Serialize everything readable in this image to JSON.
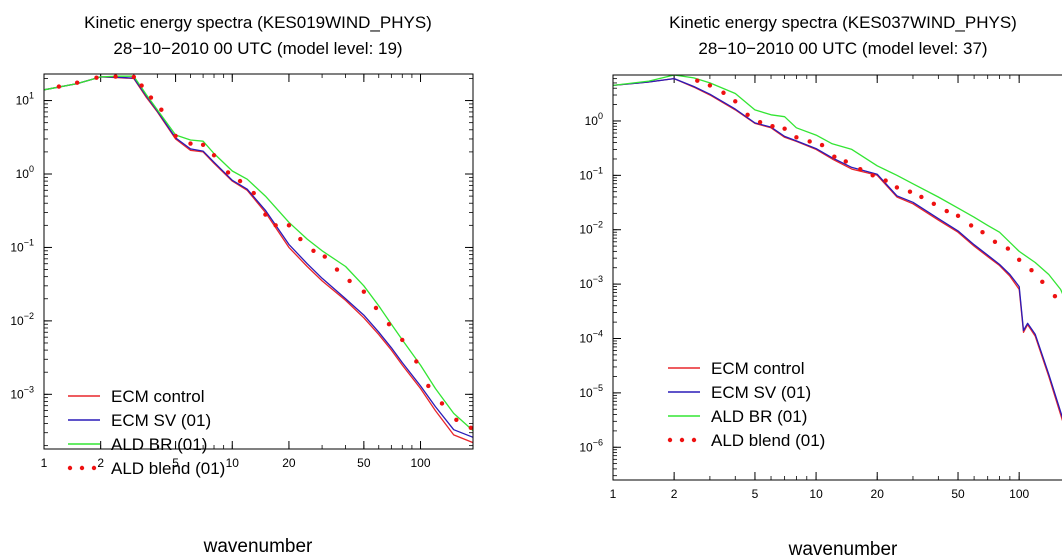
{
  "colors": {
    "ecm_control": "#e8262b",
    "ecm_sv": "#2a1bb8",
    "ald_br": "#33e533",
    "ald_blend": "#ee1111"
  },
  "chart_data": [
    {
      "type": "line",
      "title": "Kinetic energy spectra (KES019WIND_PHYS)",
      "subtitle": "28−10−2010 00 UTC (model level: 19)",
      "xlabel": "wavenumber",
      "ylabel": "",
      "x_scale": "log",
      "y_scale": "log",
      "xlim": [
        1,
        190
      ],
      "ylim": [
        0.00018,
        23
      ],
      "x_ticks": [
        1,
        2,
        5,
        10,
        20,
        50,
        100
      ],
      "x_tick_labels": [
        "1",
        "2",
        "5",
        "10",
        "20",
        "50",
        "100"
      ],
      "y_ticks": [
        0.001,
        0.01,
        0.1,
        1,
        10
      ],
      "y_tick_labels": [
        [
          "10",
          "−3"
        ],
        [
          "10",
          "−2"
        ],
        [
          "10",
          "−1"
        ],
        [
          "10",
          "0"
        ],
        [
          "10",
          "1"
        ]
      ],
      "legend_position": "bottom-left",
      "series": [
        {
          "name": "ECM control",
          "key": "ecm_control",
          "style": "line",
          "x": [
            1,
            1.5,
            2,
            2.5,
            3,
            3.5,
            4,
            5,
            6,
            7,
            8,
            10,
            12,
            15,
            20,
            25,
            30,
            40,
            50,
            60,
            70,
            80,
            100,
            120,
            150,
            190
          ],
          "y": [
            14,
            17,
            21,
            20.5,
            20,
            11,
            7,
            3,
            2.1,
            2.0,
            1.4,
            0.8,
            0.6,
            0.3,
            0.1,
            0.055,
            0.035,
            0.019,
            0.011,
            0.0065,
            0.004,
            0.0025,
            0.0012,
            0.0006,
            0.00028,
            0.00022
          ]
        },
        {
          "name": "ECM SV (01)",
          "key": "ecm_sv",
          "style": "line",
          "x": [
            1,
            1.5,
            2,
            2.5,
            3,
            3.5,
            4,
            5,
            6,
            7,
            8,
            10,
            12,
            15,
            20,
            25,
            30,
            40,
            50,
            60,
            70,
            80,
            100,
            120,
            150,
            190
          ],
          "y": [
            14,
            17,
            21,
            20.7,
            20.2,
            11.5,
            7.2,
            3.1,
            2.2,
            2.05,
            1.45,
            0.82,
            0.62,
            0.32,
            0.11,
            0.06,
            0.038,
            0.02,
            0.012,
            0.007,
            0.0043,
            0.0027,
            0.0013,
            0.00068,
            0.00033,
            0.00026
          ]
        },
        {
          "name": "ALD BR (01)",
          "key": "ald_br",
          "style": "line",
          "x": [
            1,
            1.5,
            2,
            2.5,
            3,
            3.5,
            4,
            5,
            6,
            7,
            8,
            10,
            12,
            15,
            20,
            25,
            30,
            40,
            50,
            60,
            70,
            80,
            100,
            120,
            150,
            190
          ],
          "y": [
            14,
            17,
            21,
            21.5,
            21.5,
            12,
            7.5,
            3.4,
            2.9,
            2.8,
            1.9,
            1.1,
            0.85,
            0.5,
            0.22,
            0.13,
            0.09,
            0.055,
            0.03,
            0.016,
            0.009,
            0.0055,
            0.0025,
            0.0012,
            0.00055,
            0.00032
          ]
        },
        {
          "name": "ALD blend (01)",
          "key": "ald_blend",
          "style": "dots",
          "x": [
            1.2,
            1.5,
            1.9,
            2.4,
            3,
            3.3,
            3.7,
            4.2,
            5,
            6,
            7,
            8,
            9.5,
            11,
            13,
            15,
            17,
            20,
            23,
            27,
            31,
            36,
            42,
            50,
            58,
            68,
            80,
            95,
            110,
            130,
            155,
            185
          ],
          "y": [
            15.5,
            17.5,
            20.5,
            21.2,
            21,
            16,
            11,
            7.5,
            3.3,
            2.6,
            2.5,
            1.8,
            1.05,
            0.8,
            0.55,
            0.28,
            0.2,
            0.2,
            0.13,
            0.09,
            0.075,
            0.05,
            0.035,
            0.025,
            0.015,
            0.009,
            0.0055,
            0.0028,
            0.0013,
            0.00075,
            0.00045,
            0.00035
          ]
        }
      ],
      "legend": [
        "ECM control",
        "ECM SV (01)",
        "ALD BR (01)",
        "ALD blend (01)"
      ]
    },
    {
      "type": "line",
      "title": "Kinetic energy spectra (KES037WIND_PHYS)",
      "subtitle": "28−10−2010 00 UTC (model level: 37)",
      "xlabel": "wavenumber",
      "ylabel": "",
      "x_scale": "log",
      "y_scale": "log",
      "xlim": [
        1,
        180
      ],
      "ylim": [
        2.5e-07,
        7
      ],
      "x_ticks": [
        1,
        2,
        5,
        10,
        20,
        50,
        100
      ],
      "x_tick_labels": [
        "1",
        "2",
        "5",
        "10",
        "20",
        "50",
        "100"
      ],
      "y_ticks": [
        1e-06,
        1e-05,
        0.0001,
        0.001,
        0.01,
        0.1,
        1
      ],
      "y_tick_labels": [
        [
          "10",
          "−6"
        ],
        [
          "10",
          "−5"
        ],
        [
          "10",
          "−4"
        ],
        [
          "10",
          "−3"
        ],
        [
          "10",
          "−2"
        ],
        [
          "10",
          "−1"
        ],
        [
          "10",
          "0"
        ]
      ],
      "legend_position": "bottom-left",
      "series": [
        {
          "name": "ECM control",
          "key": "ecm_control",
          "style": "line",
          "x": [
            1,
            1.5,
            2,
            2.5,
            3,
            4,
            5,
            6,
            7,
            8,
            10,
            12,
            15,
            20,
            25,
            30,
            40,
            50,
            60,
            70,
            80,
            90,
            100,
            105,
            110,
            120,
            140,
            160,
            180
          ],
          "y": [
            4.5,
            5.2,
            6,
            4.2,
            3,
            1.6,
            0.9,
            0.75,
            0.5,
            0.42,
            0.3,
            0.2,
            0.13,
            0.1,
            0.04,
            0.03,
            0.015,
            0.009,
            0.005,
            0.0032,
            0.0022,
            0.0014,
            0.0008,
            0.00013,
            0.00018,
            0.00011,
            2e-05,
            4e-06,
            1e-06
          ]
        },
        {
          "name": "ECM SV (01)",
          "key": "ecm_sv",
          "style": "line",
          "x": [
            1,
            1.5,
            2,
            2.5,
            3,
            4,
            5,
            6,
            7,
            8,
            10,
            12,
            15,
            20,
            25,
            30,
            40,
            50,
            60,
            70,
            80,
            90,
            100,
            105,
            110,
            120,
            140,
            160,
            180
          ],
          "y": [
            4.5,
            5.2,
            6,
            4.3,
            3.1,
            1.65,
            0.92,
            0.77,
            0.52,
            0.43,
            0.31,
            0.21,
            0.14,
            0.105,
            0.042,
            0.032,
            0.016,
            0.0095,
            0.0053,
            0.0034,
            0.0023,
            0.0015,
            0.0009,
            0.00014,
            0.00019,
            0.00012,
            2.2e-05,
            4.5e-06,
            1.1e-06
          ]
        },
        {
          "name": "ALD BR (01)",
          "key": "ald_br",
          "style": "line",
          "x": [
            1,
            1.5,
            2,
            2.5,
            3,
            4,
            5,
            6,
            7,
            8,
            10,
            12,
            15,
            20,
            25,
            30,
            40,
            50,
            60,
            70,
            80,
            100,
            120,
            140,
            160,
            180
          ],
          "y": [
            4.5,
            5.4,
            7,
            6.2,
            5,
            3.2,
            1.6,
            1.3,
            1.2,
            0.75,
            0.55,
            0.38,
            0.3,
            0.15,
            0.1,
            0.07,
            0.04,
            0.025,
            0.017,
            0.012,
            0.009,
            0.004,
            0.0025,
            0.0015,
            0.0008,
            0.0003
          ]
        },
        {
          "name": "ALD blend (01)",
          "key": "ald_blend",
          "style": "dots",
          "x": [
            2.6,
            3,
            3.5,
            4,
            4.6,
            5.3,
            6.1,
            7,
            8,
            9.3,
            10.7,
            12.3,
            14,
            16.5,
            19,
            22,
            25,
            29,
            33,
            38,
            44,
            50,
            58,
            66,
            76,
            88,
            100,
            115,
            130,
            150,
            170
          ],
          "y": [
            5.5,
            4.5,
            3.3,
            2.3,
            1.3,
            0.95,
            0.8,
            0.72,
            0.5,
            0.42,
            0.36,
            0.22,
            0.18,
            0.13,
            0.1,
            0.08,
            0.06,
            0.05,
            0.04,
            0.03,
            0.022,
            0.018,
            0.012,
            0.009,
            0.006,
            0.0045,
            0.0028,
            0.0018,
            0.0011,
            0.0006,
            0.0003
          ]
        }
      ],
      "legend": [
        "ECM control",
        "ECM SV (01)",
        "ALD BR (01)",
        "ALD blend (01)"
      ]
    }
  ]
}
